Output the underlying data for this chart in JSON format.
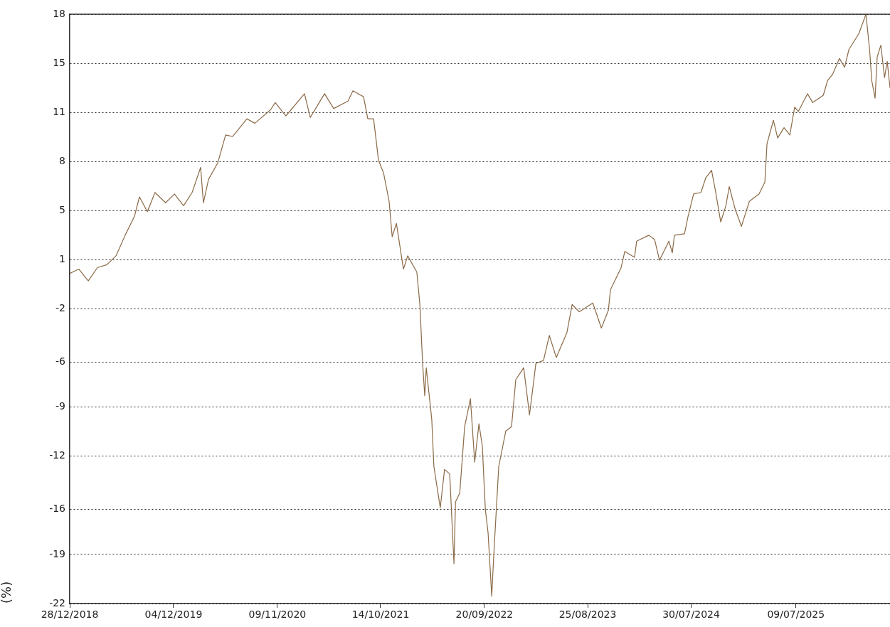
{
  "chart_data": {
    "type": "line",
    "ylabel": "(%)",
    "x": [
      "2018-12-28",
      "2019-01-27",
      "2019-02-27",
      "2019-03-29",
      "2019-04-29",
      "2019-05-29",
      "2019-06-28",
      "2019-07-29",
      "2019-08-14",
      "2019-09-09",
      "2019-10-04",
      "2019-11-08",
      "2019-12-07",
      "2020-01-06",
      "2020-02-03",
      "2020-03-02",
      "2020-03-11",
      "2020-03-28",
      "2020-04-27",
      "2020-05-23",
      "2020-06-15",
      "2020-08-01",
      "2020-08-27",
      "2020-10-17",
      "2020-11-02",
      "2020-12-07",
      "2021-02-06",
      "2021-02-25",
      "2021-04-13",
      "2021-05-13",
      "2021-06-29",
      "2021-07-15",
      "2021-08-19",
      "2021-09-02",
      "2021-09-21",
      "2021-10-07",
      "2021-10-24",
      "2021-11-11",
      "2021-11-21",
      "2021-12-05",
      "2021-12-28",
      "2022-01-11",
      "2022-02-10",
      "2022-02-20",
      "2022-03-01",
      "2022-03-08",
      "2022-03-13",
      "2022-03-31",
      "2022-04-07",
      "2022-04-28",
      "2022-05-12",
      "2022-05-29",
      "2022-06-12",
      "2022-06-17",
      "2022-07-01",
      "2022-07-17",
      "2022-08-05",
      "2022-08-19",
      "2022-09-02",
      "2022-09-13",
      "2022-09-23",
      "2022-10-02",
      "2022-10-14",
      "2022-10-21",
      "2022-11-06",
      "2022-11-29",
      "2022-12-18",
      "2023-01-01",
      "2023-01-27",
      "2023-02-15",
      "2023-03-08",
      "2023-04-02",
      "2023-04-21",
      "2023-05-14",
      "2023-06-18",
      "2023-07-05",
      "2023-07-28",
      "2023-09-11",
      "2023-10-09",
      "2023-11-01",
      "2023-11-08",
      "2023-12-13",
      "2023-12-25",
      "2024-01-26",
      "2024-02-02",
      "2024-03-13",
      "2024-04-01",
      "2024-04-17",
      "2024-05-18",
      "2024-05-29",
      "2024-06-05",
      "2024-07-08",
      "2024-07-20",
      "2024-08-07",
      "2024-08-31",
      "2024-09-16",
      "2024-10-05",
      "2024-10-17",
      "2024-11-04",
      "2024-11-21",
      "2024-12-02",
      "2024-12-21",
      "2025-01-11",
      "2025-02-06",
      "2025-03-10",
      "2025-03-29",
      "2025-04-05",
      "2025-04-26",
      "2025-05-10",
      "2025-05-31",
      "2025-06-19",
      "2025-07-05",
      "2025-07-17",
      "2025-08-16",
      "2025-09-02",
      "2025-10-07",
      "2025-10-21",
      "2025-11-06",
      "2025-11-29",
      "2025-12-16",
      "2025-12-30",
      "2026-02-01",
      "2026-02-24",
      "2026-03-08",
      "2026-03-15",
      "2026-03-26",
      "2026-04-02",
      "2026-04-14",
      "2026-04-26",
      "2026-05-05",
      "2026-05-14"
    ],
    "series": [
      {
        "color": "#8b6a47",
        "values": [
          0.4,
          0.7,
          -0.1,
          0.8,
          1.0,
          1.6,
          3.0,
          4.3,
          5.6,
          4.6,
          5.9,
          5.2,
          5.8,
          5.0,
          5.9,
          7.6,
          5.2,
          6.8,
          7.9,
          9.8,
          9.7,
          10.9,
          10.6,
          11.5,
          12.0,
          11.1,
          12.6,
          11.0,
          12.6,
          11.6,
          12.1,
          12.8,
          12.4,
          10.9,
          10.9,
          8.1,
          7.2,
          5.3,
          2.9,
          3.8,
          0.7,
          1.6,
          0.5,
          -1.7,
          -5.7,
          -7.9,
          -6.0,
          -9.5,
          -12.7,
          -15.5,
          -12.9,
          -13.2,
          -19.3,
          -15.1,
          -14.5,
          -10.0,
          -8.1,
          -12.4,
          -9.8,
          -11.3,
          -15.6,
          -17.2,
          -21.5,
          -18.6,
          -12.7,
          -10.3,
          -10.0,
          -6.8,
          -6.0,
          -9.2,
          -5.7,
          -5.5,
          -3.8,
          -5.3,
          -3.6,
          -1.7,
          -2.2,
          -1.6,
          -3.3,
          -2.1,
          -0.7,
          0.8,
          1.9,
          1.5,
          2.6,
          3.0,
          2.7,
          1.3,
          2.6,
          1.8,
          3.0,
          3.1,
          4.3,
          5.8,
          5.9,
          6.9,
          7.4,
          6.1,
          3.9,
          5.0,
          6.3,
          4.8,
          3.6,
          5.3,
          5.8,
          6.6,
          9.2,
          10.8,
          9.6,
          10.3,
          9.8,
          11.7,
          11.4,
          12.6,
          12.0,
          12.5,
          13.5,
          13.9,
          15.0,
          14.4,
          15.6,
          16.7,
          18.0,
          15.6,
          13.5,
          12.3,
          15.1,
          15.9,
          13.7,
          14.8,
          13.0
        ]
      }
    ],
    "xlim": [
      "2018-12-28",
      "2026-05-14"
    ],
    "xticks": [
      {
        "value": "2018-12-28",
        "label": "28/12/2018"
      },
      {
        "value": "2019-12-04",
        "label": "04/12/2019"
      },
      {
        "value": "2020-11-09",
        "label": "09/11/2020"
      },
      {
        "value": "2021-10-14",
        "label": "14/10/2021"
      },
      {
        "value": "2022-09-20",
        "label": "20/09/2022"
      },
      {
        "value": "2023-08-25",
        "label": "25/08/2023"
      },
      {
        "value": "2024-07-30",
        "label": "30/07/2024"
      },
      {
        "value": "2025-07-09",
        "label": "09/07/2025"
      }
    ],
    "ylim": [
      -22,
      18
    ],
    "yticks": [
      18,
      {
        "value": 14.67,
        "label": "15"
      },
      {
        "value": 11.33,
        "label": "11"
      },
      8,
      {
        "value": 4.67,
        "label": "5"
      },
      {
        "value": 1.33,
        "label": "1"
      },
      -2,
      {
        "value": -5.6,
        "label": "-6"
      },
      {
        "value": -8.67,
        "label": "-9"
      },
      -12,
      {
        "value": -15.6,
        "label": "-16"
      },
      {
        "value": -18.67,
        "label": "-19"
      },
      -22
    ],
    "grid": "y",
    "legend": false,
    "marker": "none",
    "line_style": "solid"
  }
}
